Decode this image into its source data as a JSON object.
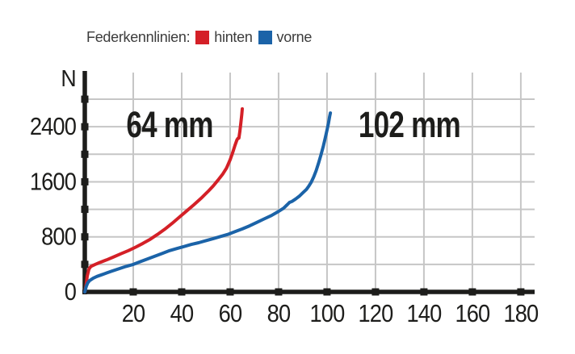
{
  "page": {
    "background": "#ffffff"
  },
  "legend": {
    "title": "Federkennlinien:",
    "items": [
      {
        "label": "hinten",
        "color": "#d42027"
      },
      {
        "label": "vorne",
        "color": "#1b63a8"
      }
    ]
  },
  "colors": {
    "axis": "#1d1d1b",
    "tick_text": "#1d1d1b",
    "grid": "#c6c6c6",
    "annotation_text": "#1d1d1b",
    "legend_text": "#3c3c3c"
  },
  "chart_data": {
    "type": "line",
    "title": "Federkennlinien",
    "xlabel": "",
    "ylabel": "N",
    "x_unit": "mm",
    "xlim": [
      0,
      185.7
    ],
    "ylim": [
      0,
      3187
    ],
    "grid": true,
    "legend_position": "top",
    "x_ticks": [
      20,
      40,
      60,
      80,
      100,
      120,
      140,
      160,
      180
    ],
    "x_tick_labels": [
      "20",
      "40",
      "60",
      "80",
      "100",
      "120",
      "140",
      "160",
      "180"
    ],
    "y_grid_values": [
      400,
      800,
      1200,
      1600,
      2000,
      2400,
      2800
    ],
    "y_tick_values": [
      400,
      800,
      1200,
      1600,
      2000,
      2400,
      2800
    ],
    "y_labeled_ticks": [
      0,
      800,
      1600,
      2400
    ],
    "y_tick_labels": [
      "0",
      "800",
      "1600",
      "2400"
    ],
    "annotations": [
      {
        "text": "64 mm",
        "x": 35,
        "y": 2390
      },
      {
        "text": "102 mm",
        "x": 134,
        "y": 2390
      }
    ],
    "series": [
      {
        "name": "hinten",
        "color": "#d42027",
        "max_travel_mm": 64,
        "points": [
          [
            0,
            0
          ],
          [
            0.5,
            90
          ],
          [
            1,
            230
          ],
          [
            1.7,
            330
          ],
          [
            2.5,
            370
          ],
          [
            4,
            395
          ],
          [
            6,
            425
          ],
          [
            9,
            465
          ],
          [
            12,
            510
          ],
          [
            15,
            555
          ],
          [
            18,
            600
          ],
          [
            21,
            650
          ],
          [
            24,
            705
          ],
          [
            27,
            765
          ],
          [
            30,
            835
          ],
          [
            33,
            910
          ],
          [
            36,
            995
          ],
          [
            39,
            1085
          ],
          [
            42,
            1175
          ],
          [
            45,
            1265
          ],
          [
            48,
            1360
          ],
          [
            51,
            1465
          ],
          [
            53,
            1540
          ],
          [
            55,
            1625
          ],
          [
            57,
            1715
          ],
          [
            58.5,
            1800
          ],
          [
            60,
            1920
          ],
          [
            61,
            2020
          ],
          [
            62,
            2130
          ],
          [
            62.8,
            2210
          ],
          [
            63.2,
            2230
          ],
          [
            63.6,
            2235
          ],
          [
            64,
            2330
          ],
          [
            64.4,
            2450
          ],
          [
            64.8,
            2580
          ],
          [
            65,
            2660
          ]
        ]
      },
      {
        "name": "vorne",
        "color": "#1b63a8",
        "max_travel_mm": 102,
        "points": [
          [
            0,
            0
          ],
          [
            0.6,
            80
          ],
          [
            1.2,
            130
          ],
          [
            2,
            165
          ],
          [
            3.5,
            200
          ],
          [
            5,
            225
          ],
          [
            7,
            250
          ],
          [
            9,
            275
          ],
          [
            11,
            300
          ],
          [
            14,
            335
          ],
          [
            17,
            370
          ],
          [
            20,
            400
          ],
          [
            23,
            440
          ],
          [
            26,
            480
          ],
          [
            29,
            520
          ],
          [
            32,
            560
          ],
          [
            35,
            600
          ],
          [
            38,
            630
          ],
          [
            41,
            660
          ],
          [
            44,
            690
          ],
          [
            47,
            715
          ],
          [
            50,
            745
          ],
          [
            53,
            775
          ],
          [
            56,
            805
          ],
          [
            59,
            835
          ],
          [
            62,
            875
          ],
          [
            65,
            915
          ],
          [
            68,
            960
          ],
          [
            71,
            1010
          ],
          [
            74,
            1060
          ],
          [
            77,
            1110
          ],
          [
            80,
            1170
          ],
          [
            82,
            1215
          ],
          [
            83.5,
            1265
          ],
          [
            84.5,
            1300
          ],
          [
            85.5,
            1315
          ],
          [
            87,
            1350
          ],
          [
            88.5,
            1390
          ],
          [
            90,
            1440
          ],
          [
            91.5,
            1490
          ],
          [
            92.5,
            1540
          ],
          [
            93.5,
            1595
          ],
          [
            94.5,
            1670
          ],
          [
            95.5,
            1760
          ],
          [
            96.5,
            1870
          ],
          [
            97.5,
            1990
          ],
          [
            98.5,
            2120
          ],
          [
            99.3,
            2240
          ],
          [
            100,
            2350
          ],
          [
            100.6,
            2450
          ],
          [
            101.1,
            2550
          ],
          [
            101.4,
            2600
          ]
        ]
      }
    ]
  }
}
